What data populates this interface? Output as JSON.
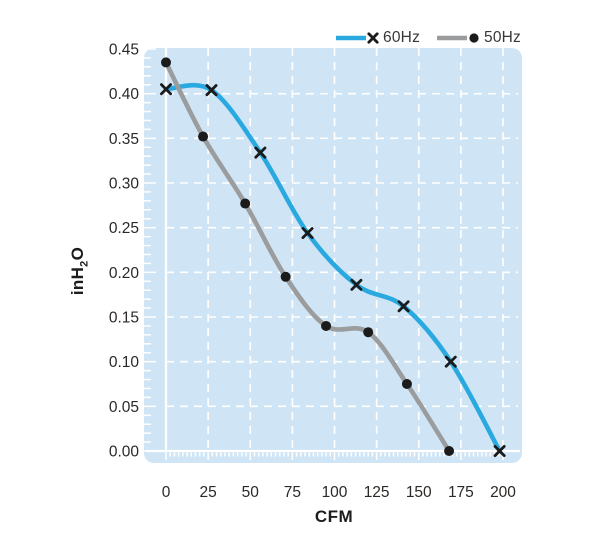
{
  "legend": {
    "items": [
      {
        "label": "60Hz",
        "marker": "x"
      },
      {
        "label": "50Hz",
        "marker": "circle"
      }
    ]
  },
  "axes": {
    "x_title": "CFM",
    "y_title": {
      "pre": "inH",
      "sub": "2",
      "post": "O"
    }
  },
  "chart_data": {
    "type": "line",
    "xlabel": "CFM",
    "ylabel": "inH2O",
    "xlim": [
      0,
      200
    ],
    "ylim": [
      0,
      0.45
    ],
    "x_ticks": [
      "0",
      "25",
      "50",
      "75",
      "100",
      "125",
      "150",
      "175",
      "200"
    ],
    "y_ticks": [
      "0.45",
      "0.40",
      "0.35",
      "0.30",
      "0.25",
      "0.20",
      "0.15",
      "0.10",
      "0.05",
      "0.00"
    ],
    "x_minor_step": 2.5,
    "y_minor_step": 0.01,
    "grid": "white dashed major gridlines on light-blue panel, white minor ruler ticks left and bottom",
    "legend_position": "top-right above plot",
    "series": [
      {
        "name": "60Hz",
        "color": "#29a9e0",
        "marker": "x",
        "points": [
          [
            0,
            0.405
          ],
          [
            27,
            0.404
          ],
          [
            56,
            0.334
          ],
          [
            84,
            0.244
          ],
          [
            113,
            0.186
          ],
          [
            141,
            0.162
          ],
          [
            169,
            0.1
          ],
          [
            198,
            0.0
          ]
        ]
      },
      {
        "name": "50Hz",
        "color": "#9a9c9e",
        "marker": "circle",
        "points": [
          [
            0,
            0.435
          ],
          [
            22,
            0.352
          ],
          [
            47,
            0.277
          ],
          [
            71,
            0.195
          ],
          [
            95,
            0.14
          ],
          [
            120,
            0.133
          ],
          [
            143,
            0.075
          ],
          [
            168,
            0.0
          ]
        ]
      }
    ],
    "colors": {
      "panel_bg": "#cfe5f5",
      "grid": "#ffffff",
      "marker": "#1b1b1b",
      "tick_text": "#2b2826"
    }
  }
}
